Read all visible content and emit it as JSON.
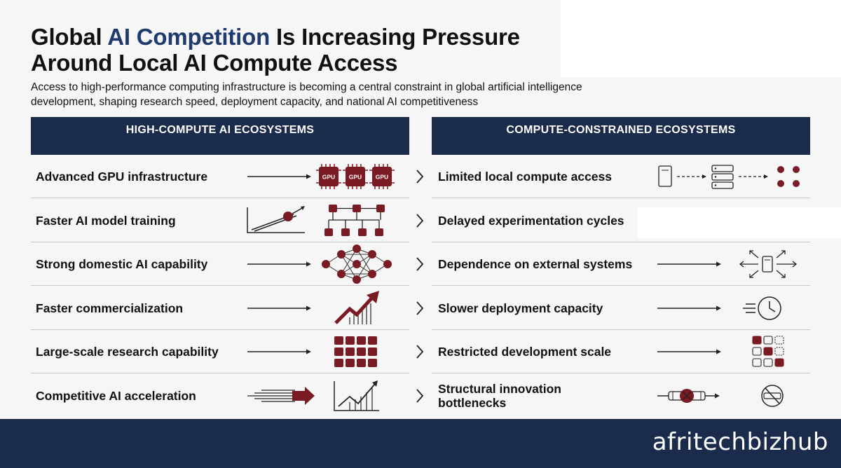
{
  "title": {
    "part1": "Global ",
    "accent": "AI Competition",
    "part2": " Is Increasing Pressure",
    "line2": "Around Local AI Compute Access"
  },
  "subtitle": "Access to high-performance computing infrastructure is becoming a central constraint in global artificial intelligence development, shaping research speed, deployment capacity, and national AI competitiveness",
  "columns": {
    "left_header": "HIGH-COMPUTE AI ECOSYSTEMS",
    "right_header": "COMPUTE-CONSTRAINED ECOSYSTEMS"
  },
  "left_rows": [
    {
      "label": "Advanced GPU infrastructure",
      "icon": "gpu-chips-icon",
      "chip_label": "GPU"
    },
    {
      "label": "Faster AI model training",
      "icon": "training-chart-icon"
    },
    {
      "label": "Strong domestic AI capability",
      "icon": "neural-network-icon"
    },
    {
      "label": "Faster commercialization",
      "icon": "growth-chart-icon"
    },
    {
      "label": "Large-scale research capability",
      "icon": "grid-blocks-icon"
    },
    {
      "label": "Competitive AI acceleration",
      "icon": "acceleration-icon"
    }
  ],
  "right_rows": [
    {
      "label": "Limited local compute access",
      "icon": "server-flow-icon"
    },
    {
      "label": "Delayed experimentation cycles",
      "icon": ""
    },
    {
      "label": "Dependence on external systems",
      "icon": "external-device-icon"
    },
    {
      "label": "Slower deployment capacity",
      "icon": "clock-icon"
    },
    {
      "label": "Restricted development scale",
      "icon": "sparse-grid-icon"
    },
    {
      "label": "Structural innovation bottlenecks",
      "icon": "blocked-pipe-icon"
    }
  ],
  "brand": "afritechbizhub",
  "colors": {
    "navy": "#1a2b4c",
    "accent_blue": "#1f3b6e",
    "maroon": "#7a1a22"
  }
}
